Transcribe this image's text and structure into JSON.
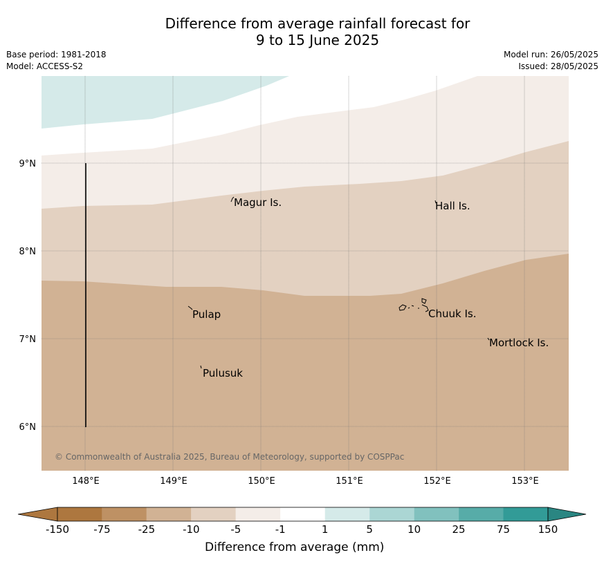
{
  "title": {
    "line1": "Difference from average rainfall forecast for",
    "line2": "9 to 15 June 2025"
  },
  "meta": {
    "base_period": "Base period: 1981-2018",
    "model": "Model: ACCESS-S2",
    "model_run": "Model run: 26/05/2025",
    "issued": "Issued: 28/05/2025"
  },
  "map": {
    "lon_ticks": [
      "148°E",
      "149°E",
      "150°E",
      "151°E",
      "152°E",
      "153°E"
    ],
    "lat_ticks": [
      "9°N",
      "8°N",
      "7°N",
      "6°N"
    ],
    "places": [
      "Magur Is.",
      "Hall Is.",
      "Pulap",
      "Chuuk Is.",
      "Mortlock Is.",
      "Pulusuk"
    ],
    "copyright": "© Commonwealth of Australia 2025, Bureau of Meteorology, supported by COSPPac"
  },
  "colorbar": {
    "ticks": [
      "-150",
      "-75",
      "-25",
      "-10",
      "-5",
      "-1",
      "1",
      "5",
      "10",
      "25",
      "75",
      "150"
    ],
    "label": "Difference from average (mm)",
    "colors": [
      "#ad773f",
      "#be9164",
      "#d1b294",
      "#e3d1c1",
      "#f4ede8",
      "#ffffff",
      "#d5eae9",
      "#abd6d4",
      "#81c1be",
      "#57aca8",
      "#329b97",
      "#2a8682"
    ]
  }
}
